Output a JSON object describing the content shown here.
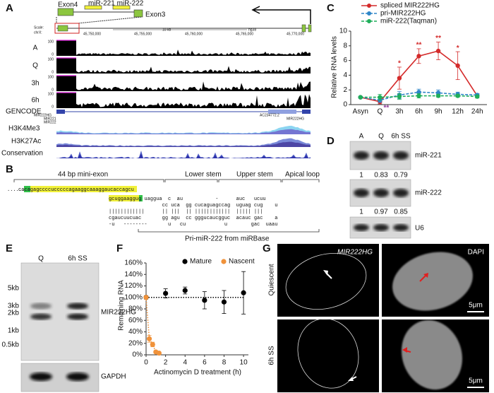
{
  "panel_labels": [
    "A",
    "B",
    "C",
    "D",
    "E",
    "F",
    "G"
  ],
  "panel_a": {
    "exon4": "Exon4",
    "mirnas": "miR-221 miR-222",
    "exon3": "Exon3",
    "scale_label": "Scale:",
    "chr_label": "chrX:",
    "scale_bar": "10 kb",
    "assembly": "hg38",
    "coordinates": [
      "45,750,000",
      "45,755,000",
      "45,760,000",
      "45,765,000",
      "45,770,000"
    ],
    "tracks": [
      "A",
      "Q",
      "3h",
      "6h"
    ],
    "track_max": "100",
    "track_min": "0",
    "gencode": "GENCODE",
    "gene_labels": [
      "MIR222HG",
      "MIR221",
      "MIR222",
      "AC234772.2",
      "MIR222HG"
    ],
    "marks": [
      "H3K4Me3",
      "H3K27Ac",
      "Conservation"
    ]
  },
  "panel_b": {
    "mini_exon": "44 bp mini-exon",
    "lower_stem": "Lower stem",
    "upper_stem": "Upper stem",
    "apical_loop": "Apical loop",
    "prefix": "......",
    "sequence": "cacagagccccucccccagaaggcaaaggaucaccagcu",
    "hairpin": [
      "gcuggaaggug uaggua  c  au           -      auc   ucuu",
      "                  cc uca  gg cucaguagccag  uguag cug    u",
      "||||||||||||      || |||  || ||||||||||||  ||||| |||",
      "cgaucuucuac       gg agu  cc gggucaucgguc  acauc gac    a",
      "-u   --------       u   cu             u        gac  uaau"
    ],
    "source": "Pri-miR-222 from miRBase"
  },
  "panel_d": {
    "lanes": [
      "A",
      "Q",
      "6h SS"
    ],
    "blots": [
      {
        "name": "miR-221",
        "quant": [
          1,
          0.83,
          0.79
        ]
      },
      {
        "name": "miR-222",
        "quant": [
          1,
          0.97,
          0.85
        ]
      },
      {
        "name": "U6"
      }
    ]
  },
  "panel_e": {
    "lanes": [
      "Q",
      "6h SS"
    ],
    "markers": [
      "5kb",
      "3kb",
      "2kb",
      "1kb",
      "0.5kb"
    ],
    "target": "MIR222HG",
    "control": "GAPDH"
  },
  "panel_g": {
    "columns": [
      "MIR222HG",
      "DAPI"
    ],
    "rows": [
      "Quiescent",
      "6h SS"
    ],
    "scale_bar": "5μm"
  },
  "chart_data": [
    {
      "type": "line",
      "ylabel": "Relative RNA levels",
      "categories": [
        "Asyn",
        "Q",
        "3h",
        "6h",
        "9h",
        "12h",
        "24h"
      ],
      "ylim": [
        0,
        10
      ],
      "yticks": [
        0,
        2,
        4,
        6,
        8,
        10
      ],
      "legend": "top-right",
      "series": [
        {
          "name": "spliced MIR222HG",
          "color": "#d42a2a",
          "dashed": false,
          "values": [
            1,
            0.4,
            3.6,
            6.6,
            7.3,
            5.3,
            1.2
          ],
          "errors": [
            0.1,
            0.3,
            1.5,
            1.0,
            1.2,
            1.9,
            0.3
          ]
        },
        {
          "name": "pri-MIR222HG",
          "color": "#2e86c8",
          "dashed": true,
          "values": [
            1,
            0.6,
            1.3,
            1.7,
            1.6,
            1.4,
            1.3
          ],
          "errors": [
            0.1,
            0.3,
            0.5,
            0.4,
            0.4,
            0.3,
            0.2
          ]
        },
        {
          "name": "miR-222(Taqman)",
          "color": "#1fae5a",
          "dashed": true,
          "values": [
            1,
            1.0,
            1.1,
            1.2,
            1.2,
            1.2,
            1.1
          ],
          "errors": [
            0.1,
            0.4,
            0.4,
            0.3,
            0.2,
            0.2,
            0.2
          ]
        }
      ],
      "annotations": [
        {
          "text": "**",
          "category": "Q",
          "color": "#8e3a9a"
        },
        {
          "text": "*",
          "category": "3h",
          "color": "#d42a2a"
        },
        {
          "text": "**",
          "category": "6h",
          "color": "#d42a2a"
        },
        {
          "text": "**",
          "category": "9h",
          "color": "#d42a2a"
        },
        {
          "text": "*",
          "category": "12h",
          "color": "#d42a2a"
        }
      ]
    },
    {
      "type": "scatter",
      "xlabel": "Actinomycin D treatment (h)",
      "ylabel": "Remaining RNA",
      "xlim": [
        0,
        10.5
      ],
      "xticks": [
        0,
        2,
        4,
        6,
        8,
        10
      ],
      "ylim": [
        0,
        160
      ],
      "yticks": [
        {
          "value": 0,
          "label": "0%"
        },
        {
          "value": 20,
          "label": "20%"
        },
        {
          "value": 40,
          "label": "40%"
        },
        {
          "value": 60,
          "label": "60%"
        },
        {
          "value": 80,
          "label": "80%"
        },
        {
          "value": 100,
          "label": "100%"
        },
        {
          "value": 120,
          "label": "120%"
        },
        {
          "value": 140,
          "label": "140%"
        },
        {
          "value": 160,
          "label": "160%"
        }
      ],
      "legend": "top",
      "series": [
        {
          "name": "Mature",
          "color": "#000000",
          "x": [
            0,
            2,
            4,
            6,
            8,
            10
          ],
          "values": [
            100,
            107,
            112,
            95,
            92,
            108
          ],
          "errors": [
            3,
            8,
            6,
            15,
            20,
            37
          ]
        },
        {
          "name": "Nascent",
          "color": "#f0923a",
          "x": [
            0,
            0.33,
            0.67,
            1,
            1.33
          ],
          "values": [
            100,
            28,
            18,
            5,
            3
          ],
          "errors": [
            2,
            6,
            4,
            2,
            1
          ]
        }
      ]
    }
  ]
}
